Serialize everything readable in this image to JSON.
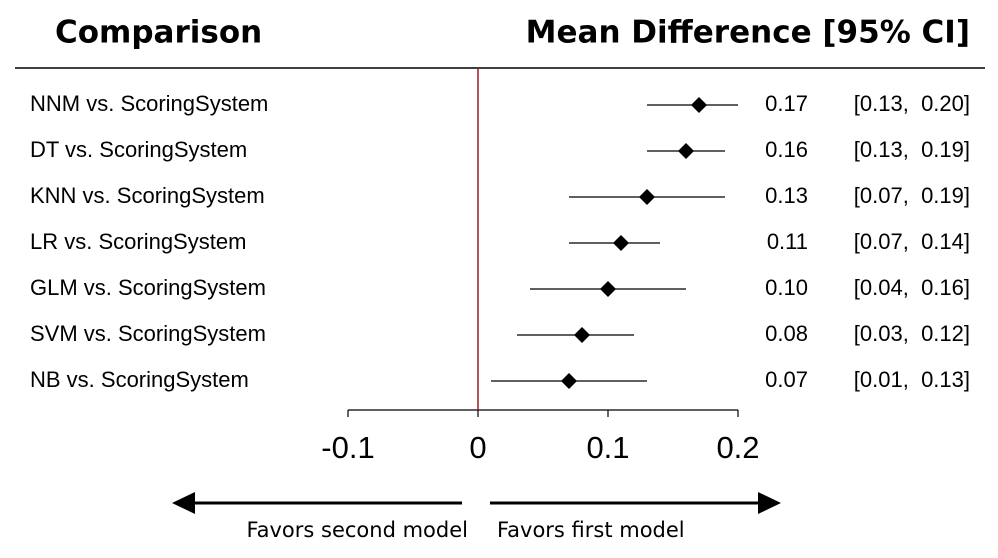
{
  "chart_data": {
    "type": "forest",
    "header_left": "Comparison",
    "header_right": "Mean Difference [95% CI]",
    "categories": [
      "NNM vs. ScoringSystem",
      "DT vs. ScoringSystem",
      "KNN vs. ScoringSystem",
      "LR vs. ScoringSystem",
      "GLM vs. ScoringSystem",
      "SVM vs. ScoringSystem",
      "NB vs. ScoringSystem"
    ],
    "values": [
      0.17,
      0.16,
      0.13,
      0.11,
      0.1,
      0.08,
      0.07
    ],
    "value_labels": [
      "0.17",
      "0.16",
      "0.13",
      "0.11",
      "0.10",
      "0.08",
      "0.07"
    ],
    "lower": [
      0.13,
      0.13,
      0.07,
      0.07,
      0.04,
      0.03,
      0.01
    ],
    "upper": [
      0.2,
      0.19,
      0.19,
      0.14,
      0.16,
      0.12,
      0.13
    ],
    "ci_labels": [
      "[0.13,  0.20]",
      "[0.13,  0.19]",
      "[0.07,  0.19]",
      "[0.07,  0.14]",
      "[0.04,  0.16]",
      "[0.03,  0.12]",
      "[0.01,  0.13]"
    ],
    "xlim": [
      -0.1,
      0.2
    ],
    "xticks": [
      -0.1,
      0,
      0.1,
      0.2
    ],
    "reference_line": 0,
    "reference_color": "#9b1c24",
    "color": "#000000",
    "left_arrow_label": "Favors second model",
    "right_arrow_label": "Favors first model"
  }
}
